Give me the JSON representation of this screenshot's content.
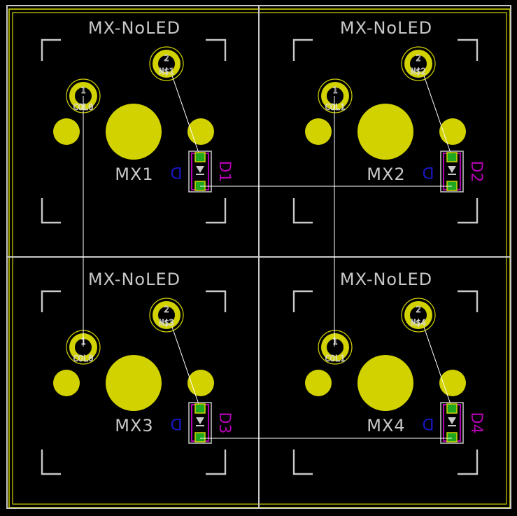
{
  "colors": {
    "background": "#000000",
    "silkscreen": "#c8c8c8",
    "edge_cuts": "#d2d200",
    "pad": "#d2d200",
    "smd_pad": "#1fa71f",
    "diode_outline": "#b400b4",
    "diode_value": "#1818c8",
    "ratsnest": "#ffffff"
  },
  "switches": [
    {
      "value": "MX-NoLED",
      "reference": "MX1",
      "pin1_net": "COL0",
      "pin2_net": "N$1",
      "diode_ref": "D1",
      "diode_value": "D"
    },
    {
      "value": "MX-NoLED",
      "reference": "MX2",
      "pin1_net": "COL1",
      "pin2_net": "N$2",
      "diode_ref": "D2",
      "diode_value": "D"
    },
    {
      "value": "MX-NoLED",
      "reference": "MX3",
      "pin1_net": "COL0",
      "pin2_net": "N$3",
      "diode_ref": "D3",
      "diode_value": "D"
    },
    {
      "value": "MX-NoLED",
      "reference": "MX4",
      "pin1_net": "COL1",
      "pin2_net": "N$4",
      "diode_ref": "D4",
      "diode_value": "D"
    }
  ],
  "pin_labels": {
    "pin1": "1",
    "pin2": "2"
  }
}
